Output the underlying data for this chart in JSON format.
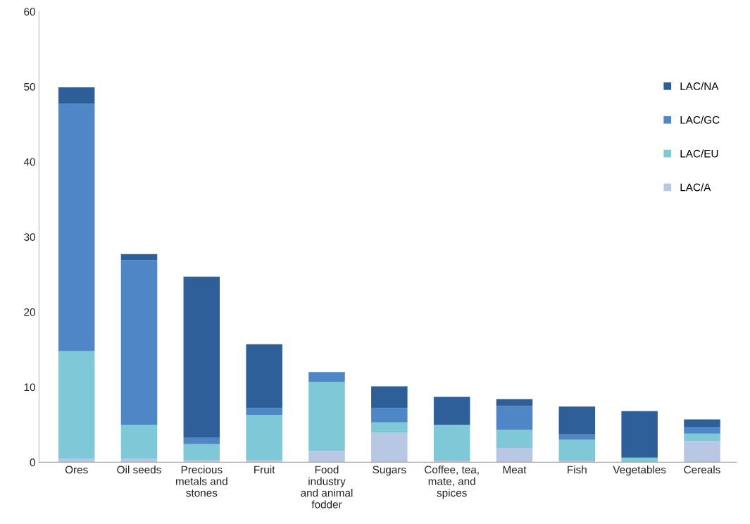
{
  "chart_data": {
    "type": "bar",
    "stacked": true,
    "categories": [
      "Ores",
      "Oil seeds",
      "Precious\nmetals and\nstones",
      "Fruit",
      "Food\nindustry\nand animal\nfodder",
      "Sugars",
      "Coffee, tea,\nmate, and\nspices",
      "Meat",
      "Fish",
      "Vegetables",
      "Cereals"
    ],
    "series": [
      {
        "name": "LAC/A",
        "color": "#b8c8e4",
        "values": [
          0.5,
          0.5,
          0.3,
          0.3,
          1.5,
          3.9,
          0.2,
          1.9,
          0.2,
          null,
          2.8
        ]
      },
      {
        "name": "LAC/EU",
        "color": "#7ec8d8",
        "values": [
          14.3,
          4.5,
          2.1,
          6.0,
          9.2,
          1.4,
          4.8,
          2.4,
          2.8,
          0.6,
          1.0
        ]
      },
      {
        "name": "LAC/GC",
        "color": "#4f86c6",
        "values": [
          32.9,
          21.9,
          0.9,
          0.9,
          1.3,
          1.9,
          0,
          3.2,
          0.7,
          0,
          0.9
        ]
      },
      {
        "name": "LAC/NA",
        "color": "#2f5f98",
        "values": [
          2.2,
          0.8,
          21.4,
          8.5,
          0,
          2.9,
          3.7,
          0.9,
          3.7,
          6.2,
          1.0
        ]
      }
    ],
    "ylim": [
      0,
      60
    ],
    "yticks": [
      0,
      10,
      20,
      30,
      40,
      50,
      60
    ],
    "grid": false,
    "legend": "right"
  }
}
